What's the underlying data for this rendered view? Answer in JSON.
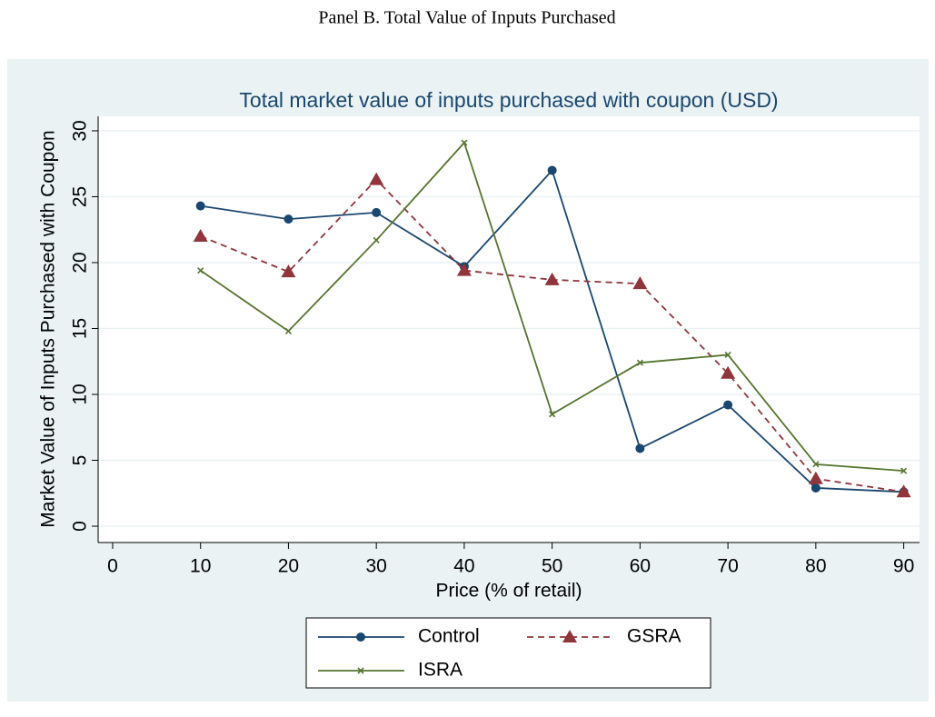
{
  "panel_title": "Panel B. Total Value of Inputs Purchased",
  "chart_data": {
    "type": "line",
    "title": "Total market value of inputs purchased with coupon (USD)",
    "x_label": "Price (% of retail)",
    "y_label": "Market Value of Inputs Purchased with Coupon",
    "x": [
      10,
      20,
      30,
      40,
      50,
      60,
      70,
      80,
      90
    ],
    "series": [
      {
        "name": "Control",
        "color": "#1a476f",
        "marker": "circle",
        "dashed": false,
        "values": [
          24.3,
          23.3,
          23.8,
          19.7,
          27.0,
          5.9,
          9.2,
          2.9,
          2.6
        ]
      },
      {
        "name": "GSRA",
        "color": "#90353b",
        "marker": "triangle",
        "dashed": true,
        "values": [
          22.0,
          19.3,
          26.3,
          19.4,
          18.7,
          18.4,
          11.6,
          3.6,
          2.6
        ]
      },
      {
        "name": "ISRA",
        "color": "#55752f",
        "marker": "x",
        "dashed": false,
        "values": [
          19.4,
          14.8,
          21.7,
          29.1,
          8.5,
          12.4,
          13.0,
          4.7,
          4.2
        ]
      }
    ],
    "xlim": [
      -1.65,
      91.8
    ],
    "xticks": [
      0,
      10,
      20,
      30,
      40,
      50,
      60,
      70,
      80,
      90
    ],
    "ylim": [
      -1.24,
      31.1
    ],
    "yticks": [
      0,
      5,
      10,
      15,
      20,
      25,
      30
    ],
    "grid": true,
    "legend": "bottom"
  }
}
